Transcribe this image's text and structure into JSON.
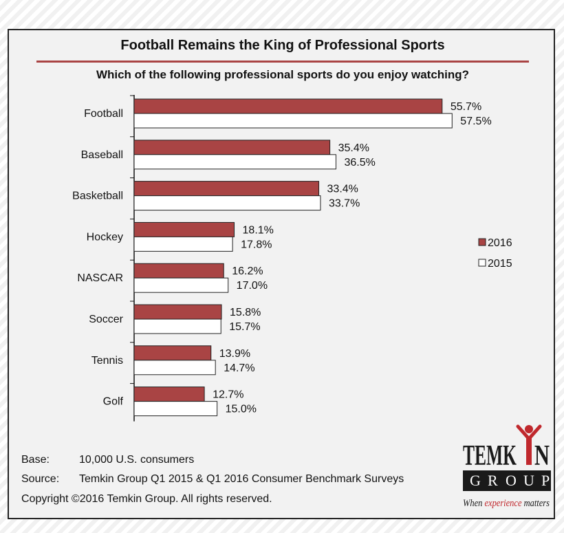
{
  "colors": {
    "y2016": "#a94444",
    "y2015": "#ffffff",
    "rule": "#a94444",
    "text": "#111111"
  },
  "chart_data": {
    "type": "bar",
    "orientation": "horizontal",
    "title": "Football Remains the King of Professional Sports",
    "subtitle": "Which of the following professional sports do you enjoy watching?",
    "categories": [
      "Football",
      "Baseball",
      "Basketball",
      "Hockey",
      "NASCAR",
      "Soccer",
      "Tennis",
      "Golf"
    ],
    "series": [
      {
        "name": "2016",
        "values": [
          55.7,
          35.4,
          33.4,
          18.1,
          16.2,
          15.8,
          13.9,
          12.7
        ],
        "labels": [
          "55.7%",
          "35.4%",
          "33.4%",
          "18.1%",
          "16.2%",
          "15.8%",
          "13.9%",
          "12.7%"
        ]
      },
      {
        "name": "2015",
        "values": [
          57.5,
          36.5,
          33.7,
          17.8,
          17.0,
          15.7,
          14.7,
          15.0
        ],
        "labels": [
          "57.5%",
          "36.5%",
          "33.7%",
          "17.8%",
          "17.0%",
          "15.7%",
          "14.7%",
          "15.0%"
        ]
      }
    ],
    "value_unit": "%",
    "xlim": [
      0,
      100
    ],
    "legend": {
      "position": "right",
      "entries": [
        "2016",
        "2015"
      ]
    },
    "grid": false
  },
  "footer": {
    "base_key": "Base:",
    "base_value": "10,000 U.S. consumers",
    "source_key": "Source:",
    "source_value": "Temkin Group Q1 2015 & Q1 2016 Consumer Benchmark Surveys",
    "copyright": "Copyright ©2016 Temkin Group. All rights reserved."
  },
  "logo": {
    "word_top_left": "TEMK",
    "word_top_right": "N",
    "word_bottom": [
      "G",
      "R",
      "O",
      "U",
      "P"
    ],
    "tagline_when": "When ",
    "tagline_experience": "experience",
    "tagline_matters": " matters"
  }
}
